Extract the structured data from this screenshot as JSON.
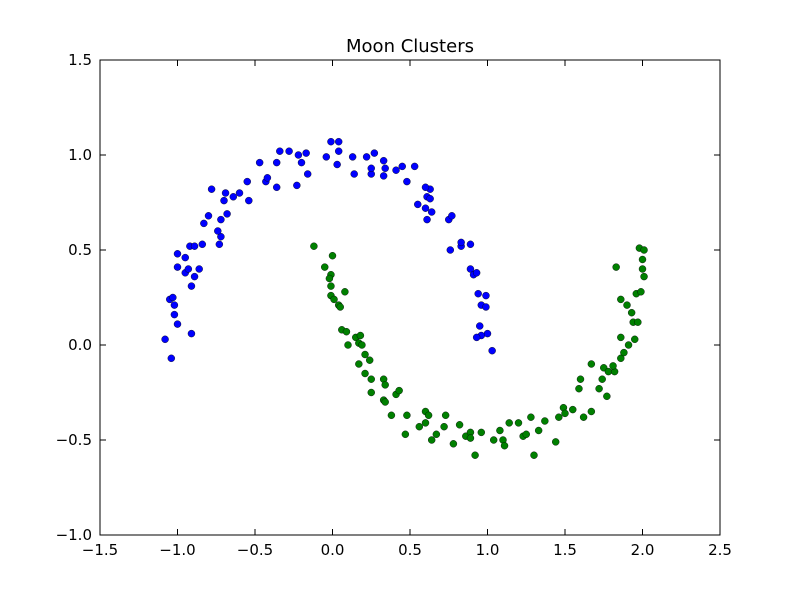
{
  "chart_data": {
    "type": "scatter",
    "title": "Moon Clusters",
    "xlabel": "",
    "ylabel": "",
    "xlim": [
      -1.5,
      2.5
    ],
    "ylim": [
      -1.0,
      1.5
    ],
    "xticks": [
      "−1.5",
      "−1.0",
      "−0.5",
      "0.0",
      "0.5",
      "1.0",
      "1.5",
      "2.0",
      "2.5"
    ],
    "yticks": [
      "−1.0",
      "−0.5",
      "0.0",
      "0.5",
      "1.0",
      "1.5"
    ],
    "grid": false,
    "series": [
      {
        "color": "#0000ff",
        "points": [
          [
            -1.05,
            0.24
          ],
          [
            -1.03,
            0.25
          ],
          [
            -1.02,
            0.21
          ],
          [
            -1.02,
            0.16
          ],
          [
            -1.0,
            0.11
          ],
          [
            -1.08,
            0.03
          ],
          [
            -1.04,
            -0.07
          ],
          [
            -0.91,
            0.06
          ],
          [
            -0.91,
            0.31
          ],
          [
            -0.95,
            0.38
          ],
          [
            -0.93,
            0.4
          ],
          [
            -0.89,
            0.36
          ],
          [
            -0.86,
            0.4
          ],
          [
            -1.0,
            0.41
          ],
          [
            -1.0,
            0.48
          ],
          [
            -0.95,
            0.46
          ],
          [
            -0.92,
            0.52
          ],
          [
            -0.89,
            0.52
          ],
          [
            -0.84,
            0.53
          ],
          [
            -0.73,
            0.53
          ],
          [
            -0.72,
            0.57
          ],
          [
            -0.74,
            0.6
          ],
          [
            -0.83,
            0.64
          ],
          [
            -0.8,
            0.68
          ],
          [
            -0.72,
            0.66
          ],
          [
            -0.68,
            0.69
          ],
          [
            -0.7,
            0.76
          ],
          [
            -0.69,
            0.8
          ],
          [
            -0.64,
            0.78
          ],
          [
            -0.6,
            0.8
          ],
          [
            -0.78,
            0.82
          ],
          [
            -0.54,
            0.76
          ],
          [
            -0.55,
            0.86
          ],
          [
            -0.43,
            0.86
          ],
          [
            -0.42,
            0.88
          ],
          [
            -0.47,
            0.96
          ],
          [
            -0.36,
            0.96
          ],
          [
            -0.36,
            0.83
          ],
          [
            -0.34,
            1.02
          ],
          [
            -0.28,
            1.02
          ],
          [
            -0.22,
            1.0
          ],
          [
            -0.23,
            0.84
          ],
          [
            -0.2,
            0.96
          ],
          [
            -0.17,
            1.01
          ],
          [
            -0.16,
            0.9
          ],
          [
            -0.04,
            0.99
          ],
          [
            -0.01,
            1.07
          ],
          [
            0.04,
            1.07
          ],
          [
            0.04,
            1.02
          ],
          [
            0.03,
            0.95
          ],
          [
            0.13,
            0.99
          ],
          [
            0.14,
            0.9
          ],
          [
            0.22,
            0.99
          ],
          [
            0.25,
            0.9
          ],
          [
            0.27,
            1.01
          ],
          [
            0.25,
            0.93
          ],
          [
            0.34,
            0.93
          ],
          [
            0.33,
            0.97
          ],
          [
            0.33,
            0.89
          ],
          [
            0.41,
            0.92
          ],
          [
            0.45,
            0.94
          ],
          [
            0.48,
            0.86
          ],
          [
            0.53,
            0.94
          ],
          [
            0.55,
            0.74
          ],
          [
            0.6,
            0.72
          ],
          [
            0.61,
            0.66
          ],
          [
            0.61,
            0.78
          ],
          [
            0.63,
            0.77
          ],
          [
            0.64,
            0.7
          ],
          [
            0.63,
            0.82
          ],
          [
            0.6,
            0.83
          ],
          [
            0.76,
            0.5
          ],
          [
            0.75,
            0.66
          ],
          [
            0.77,
            0.68
          ],
          [
            0.83,
            0.52
          ],
          [
            0.83,
            0.54
          ],
          [
            0.89,
            0.53
          ],
          [
            0.89,
            0.4
          ],
          [
            0.91,
            0.37
          ],
          [
            0.93,
            0.38
          ],
          [
            0.94,
            0.27
          ],
          [
            0.96,
            0.21
          ],
          [
            0.99,
            0.26
          ],
          [
            0.99,
            0.2
          ],
          [
            0.95,
            0.1
          ],
          [
            1.0,
            0.06
          ],
          [
            0.96,
            0.05
          ],
          [
            0.93,
            0.04
          ],
          [
            1.03,
            -0.03
          ]
        ]
      },
      {
        "color": "#008000",
        "points": [
          [
            -0.12,
            0.52
          ],
          [
            0.0,
            0.47
          ],
          [
            -0.05,
            0.41
          ],
          [
            -0.01,
            0.37
          ],
          [
            -0.02,
            0.35
          ],
          [
            -0.01,
            0.31
          ],
          [
            0.08,
            0.28
          ],
          [
            -0.01,
            0.26
          ],
          [
            0.01,
            0.24
          ],
          [
            0.04,
            0.21
          ],
          [
            0.05,
            0.2
          ],
          [
            0.06,
            0.08
          ],
          [
            0.09,
            0.07
          ],
          [
            0.1,
            0.0
          ],
          [
            0.15,
            0.04
          ],
          [
            0.18,
            0.05
          ],
          [
            0.17,
            0.01
          ],
          [
            0.19,
            0.0
          ],
          [
            0.21,
            -0.05
          ],
          [
            0.17,
            -0.1
          ],
          [
            0.24,
            -0.08
          ],
          [
            0.21,
            -0.15
          ],
          [
            0.25,
            -0.18
          ],
          [
            0.25,
            -0.25
          ],
          [
            0.33,
            -0.18
          ],
          [
            0.34,
            -0.21
          ],
          [
            0.33,
            -0.29
          ],
          [
            0.34,
            -0.3
          ],
          [
            0.41,
            -0.26
          ],
          [
            0.43,
            -0.24
          ],
          [
            0.38,
            -0.37
          ],
          [
            0.47,
            -0.47
          ],
          [
            0.48,
            -0.37
          ],
          [
            0.56,
            -0.43
          ],
          [
            0.6,
            -0.41
          ],
          [
            0.6,
            -0.35
          ],
          [
            0.62,
            -0.37
          ],
          [
            0.64,
            -0.5
          ],
          [
            0.67,
            -0.47
          ],
          [
            0.72,
            -0.43
          ],
          [
            0.73,
            -0.37
          ],
          [
            0.78,
            -0.52
          ],
          [
            0.82,
            -0.42
          ],
          [
            0.86,
            -0.48
          ],
          [
            0.89,
            -0.46
          ],
          [
            0.89,
            -0.49
          ],
          [
            0.92,
            -0.58
          ],
          [
            0.96,
            -0.46
          ],
          [
            1.04,
            -0.5
          ],
          [
            1.08,
            -0.45
          ],
          [
            1.1,
            -0.5
          ],
          [
            1.11,
            -0.53
          ],
          [
            1.14,
            -0.41
          ],
          [
            1.2,
            -0.41
          ],
          [
            1.23,
            -0.48
          ],
          [
            1.25,
            -0.47
          ],
          [
            1.28,
            -0.38
          ],
          [
            1.3,
            -0.58
          ],
          [
            1.33,
            -0.45
          ],
          [
            1.37,
            -0.4
          ],
          [
            1.44,
            -0.51
          ],
          [
            1.46,
            -0.38
          ],
          [
            1.49,
            -0.33
          ],
          [
            1.5,
            -0.36
          ],
          [
            1.55,
            -0.34
          ],
          [
            1.59,
            -0.23
          ],
          [
            1.6,
            -0.18
          ],
          [
            1.62,
            -0.38
          ],
          [
            1.67,
            -0.1
          ],
          [
            1.67,
            -0.35
          ],
          [
            1.72,
            -0.23
          ],
          [
            1.74,
            -0.18
          ],
          [
            1.75,
            -0.12
          ],
          [
            1.77,
            -0.27
          ],
          [
            1.78,
            -0.14
          ],
          [
            1.82,
            -0.14
          ],
          [
            1.81,
            -0.11
          ],
          [
            1.83,
            0.41
          ],
          [
            1.86,
            -0.07
          ],
          [
            1.88,
            -0.04
          ],
          [
            1.86,
            0.04
          ],
          [
            1.86,
            0.24
          ],
          [
            1.9,
            0.21
          ],
          [
            1.93,
            0.17
          ],
          [
            1.91,
            0.0
          ],
          [
            1.95,
            0.03
          ],
          [
            1.94,
            0.12
          ],
          [
            1.97,
            0.12
          ],
          [
            1.96,
            0.27
          ],
          [
            1.99,
            0.28
          ],
          [
            2.0,
            0.4
          ],
          [
            2.01,
            0.36
          ],
          [
            2.0,
            0.45
          ],
          [
            1.98,
            0.51
          ],
          [
            2.01,
            0.5
          ]
        ]
      }
    ]
  }
}
